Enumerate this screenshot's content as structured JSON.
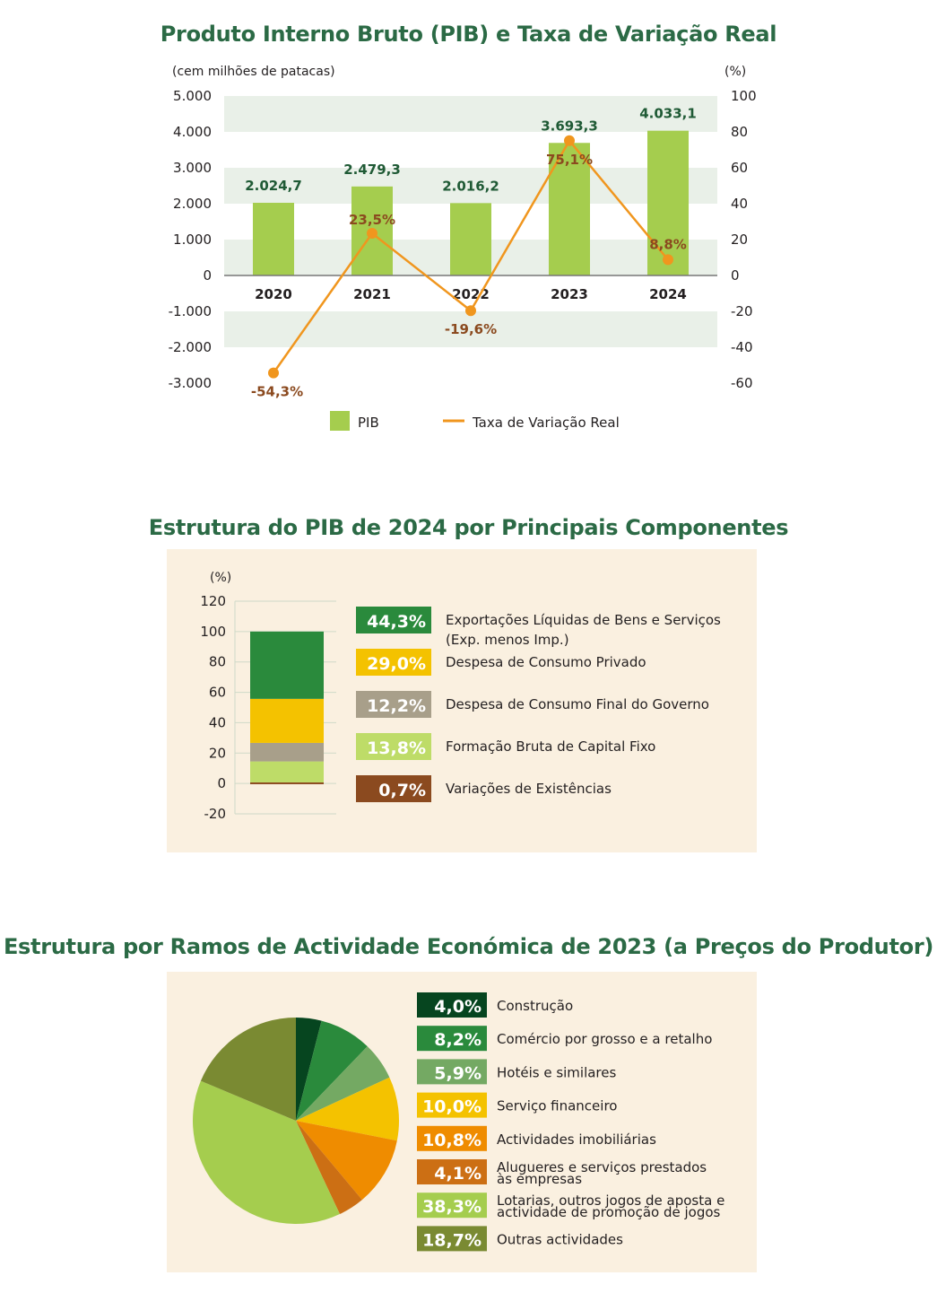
{
  "chart_data": [
    {
      "type": "bar+line",
      "title": "Produto Interno Bruto (PIB) e Taxa de Variação Real",
      "ylabel_left": "(cem milhões de patacas)",
      "ylabel_right": "(%)",
      "categories": [
        "2020",
        "2021",
        "2022",
        "2023",
        "2024"
      ],
      "ylim_left": [
        -3000,
        5000
      ],
      "ylim_right": [
        -60,
        100
      ],
      "yticks_left": [
        "5.000",
        "4.000",
        "3.000",
        "2.000",
        "1.000",
        "0",
        "-1.000",
        "-2.000",
        "-3.000"
      ],
      "yticks_right": [
        "100",
        "80",
        "60",
        "40",
        "20",
        "0",
        "-20",
        "-40",
        "-60"
      ],
      "series": [
        {
          "name": "PIB",
          "type": "bar",
          "values": [
            2024.7,
            2479.3,
            2016.2,
            3693.3,
            4033.1
          ],
          "labels": [
            "2.024,7",
            "2.479,3",
            "2.016,2",
            "3.693,3",
            "4.033,1"
          ],
          "color": "#a5cd4e"
        },
        {
          "name": "Taxa de Variação Real",
          "type": "line",
          "values": [
            -54.3,
            23.5,
            -19.6,
            75.1,
            8.8
          ],
          "labels": [
            "-54,3%",
            "23,5%",
            "-19,6%",
            "75,1%",
            "8,8%"
          ],
          "color": "#f0961e"
        }
      ],
      "legend": {
        "bar": "PIB",
        "line": "Taxa de Variação Real",
        "placement": "bottom"
      }
    },
    {
      "type": "stacked-bar",
      "title": "Estrutura do PIB de 2024 por Principais Componentes",
      "ylabel": "(%)",
      "ylim": [
        -20,
        120
      ],
      "yticks": [
        "120",
        "100",
        "80",
        "60",
        "40",
        "20",
        "0",
        "-20"
      ],
      "components": [
        {
          "name": "Variações de Existências",
          "value": 0.7,
          "label": "0,7%",
          "color": "#8b4a1f"
        },
        {
          "name": "Formação Bruta de Capital Fixo",
          "value": 13.8,
          "label": "13,8%",
          "color": "#bedc68"
        },
        {
          "name": "Despesa de Consumo Final do Governo",
          "value": 12.2,
          "label": "12,2%",
          "color": "#a89f8a"
        },
        {
          "name": "Despesa de Consumo Privado",
          "value": 29.0,
          "label": "29,0%",
          "color": "#f4c200"
        },
        {
          "name": "Exportações Líquidas de Bens e Serviços",
          "name_line2": "(Exp. menos Imp.)",
          "value": 44.3,
          "label": "44,3%",
          "color": "#2a8a3c"
        }
      ]
    },
    {
      "type": "pie",
      "title": "Estrutura por Ramos de Actividade Económica de 2023 (a Preços do Produtor)",
      "slices": [
        {
          "name": "Construção",
          "value": 4.0,
          "label": "4,0%",
          "color": "#06451f"
        },
        {
          "name": "Comércio por grosso e a retalho",
          "value": 8.2,
          "label": "8,2%",
          "color": "#2a8a3c"
        },
        {
          "name": "Hotéis e similares",
          "value": 5.9,
          "label": "5,9%",
          "color": "#74a963"
        },
        {
          "name": "Serviço financeiro",
          "value": 10.0,
          "label": "10,0%",
          "color": "#f4c200"
        },
        {
          "name": "Actividades imobiliárias",
          "value": 10.8,
          "label": "10,8%",
          "color": "#ef8c00"
        },
        {
          "name": "Alugueres e serviços prestados",
          "name_line2": "às empresas",
          "value": 4.1,
          "label": "4,1%",
          "color": "#cc6f14"
        },
        {
          "name": "Lotarias, outros jogos de aposta e",
          "name_line2": "actividade de promoção de jogos",
          "value": 38.3,
          "label": "38,3%",
          "color": "#a5cd4e"
        },
        {
          "name": "Outras actividades",
          "value": 18.7,
          "label": "18,7%",
          "color": "#7a8a32"
        }
      ]
    }
  ]
}
